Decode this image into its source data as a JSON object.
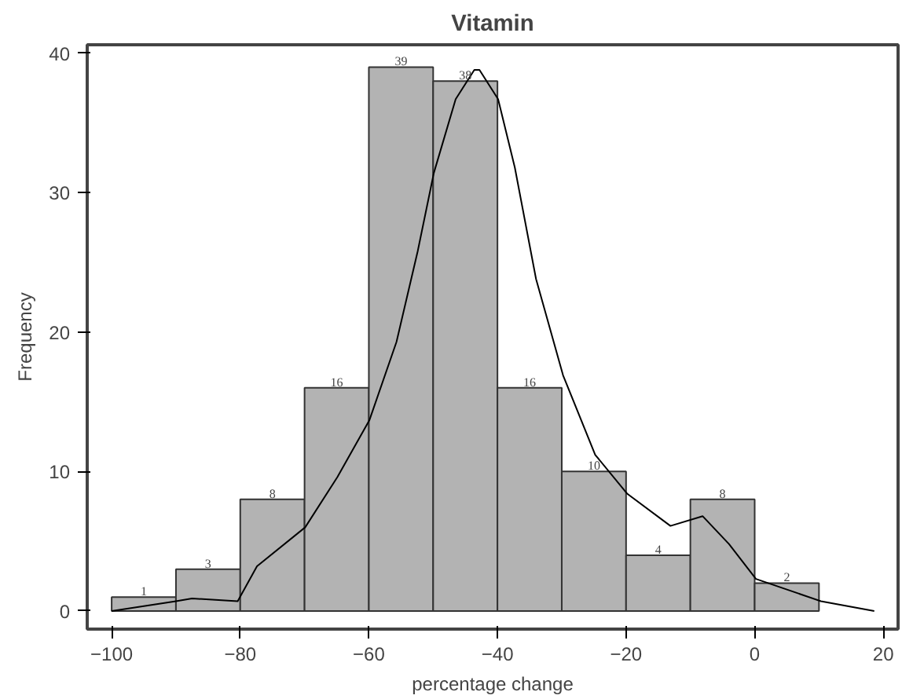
{
  "chart_data": {
    "type": "histogram",
    "title": "Vitamin",
    "xlabel": "percentage change",
    "ylabel": "Frequency",
    "bins": [
      -100,
      -90,
      -80,
      -70,
      -60,
      -50,
      -40,
      -30,
      -20,
      -10,
      0,
      10
    ],
    "grid": false,
    "xlim": [
      -103.8,
      22.3
    ],
    "ylim": [
      -1.3,
      40.6
    ],
    "xticks": [
      -100,
      -80,
      -60,
      -40,
      -20,
      0,
      20
    ],
    "yticks": [
      0,
      10,
      20,
      30,
      40
    ],
    "series": [
      {
        "color": "#b3b3b3",
        "values": [
          1,
          3,
          8,
          16,
          39,
          38,
          16,
          10,
          4,
          8,
          2
        ],
        "value_labels": [
          "1",
          "3",
          "8",
          "16",
          "39",
          "38",
          "16",
          "10",
          "4",
          "8",
          "2"
        ]
      },
      {
        "type": "line",
        "color": "#000000",
        "x": [
          -100,
          -90,
          -87.5,
          -80.4,
          -77.4,
          -69.9,
          -64.9,
          -59.9,
          -55.7,
          -52.4,
          -49.9,
          -46.5,
          -43.6,
          -42.8,
          -39.9,
          -37.3,
          -34.0,
          -29.8,
          -24.8,
          -19.8,
          -13.1,
          -8.1,
          -4.0,
          0.2,
          10.3,
          18.6
        ],
        "values": [
          0,
          0.7,
          0.9,
          0.7,
          3.2,
          6.0,
          9.6,
          13.7,
          19.3,
          25.8,
          31.4,
          36.7,
          38.8,
          38.8,
          36.7,
          31.8,
          23.8,
          16.9,
          11.2,
          8.4,
          6.1,
          6.8,
          4.8,
          2.3,
          0.7,
          0
        ]
      }
    ]
  }
}
